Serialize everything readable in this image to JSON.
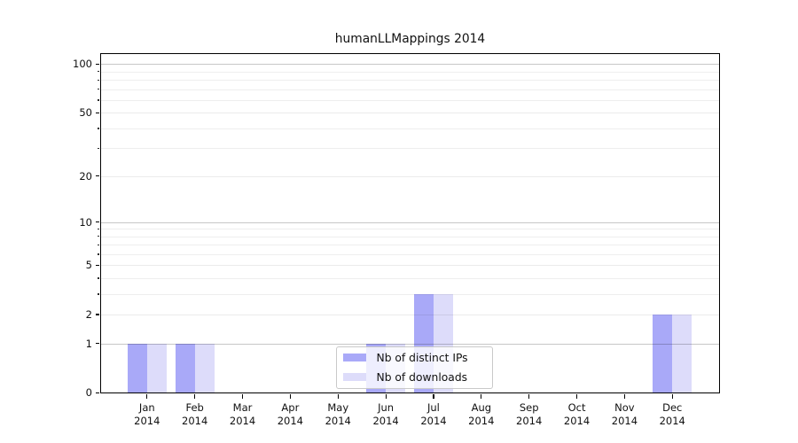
{
  "chart_data": {
    "type": "bar",
    "title": "humanLLMappings 2014",
    "categories": [
      "Jan",
      "Feb",
      "Mar",
      "Apr",
      "May",
      "Jun",
      "Jul",
      "Aug",
      "Sep",
      "Oct",
      "Nov",
      "Dec"
    ],
    "category_year_line": "2014",
    "series": [
      {
        "name": "Nb of distinct IPs",
        "color": "#a9a9f8",
        "values": [
          1,
          1,
          0,
          0,
          0,
          1,
          3,
          0,
          0,
          0,
          0,
          2
        ]
      },
      {
        "name": "Nb of downloads",
        "color": "#dddcfa",
        "values": [
          1,
          1,
          0,
          0,
          0,
          1,
          3,
          0,
          0,
          0,
          0,
          2
        ]
      }
    ],
    "scale": "log10(1+v)",
    "ylim": [
      0,
      117
    ],
    "y_ticks_labeled": [
      0,
      1,
      2,
      5,
      10,
      20,
      50,
      100
    ],
    "y_ticks_decade": [
      1,
      10,
      100
    ],
    "y_ticks_minor": [
      3,
      4,
      6,
      7,
      8,
      9,
      30,
      40,
      60,
      70,
      80,
      90
    ],
    "grid": "horizontal",
    "legend_position": "inside lower center"
  },
  "colors": {
    "background": "#ffffff",
    "spine": "#000000",
    "decade_gridline": "#c7c7c7",
    "labeled_gridline": "#ececec",
    "minor_gridline": "#eeeeee",
    "legend_border": "#c9c9c9",
    "text": "#111111"
  }
}
